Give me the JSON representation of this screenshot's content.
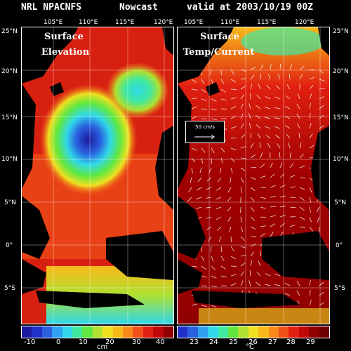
{
  "header": {
    "source": "NRL NPACNFS",
    "product": "Nowcast",
    "valid": "valid at 2003/10/19 00Z"
  },
  "longitude_ticks": [
    "105°E",
    "110°E",
    "115°E",
    "120°E"
  ],
  "latitude_ticks_left": [
    "25°N",
    "20°N",
    "15°N",
    "10°N",
    "5°N",
    "0°",
    "5°S"
  ],
  "latitude_ticks_right": [
    "25°N",
    "20°N",
    "15°N",
    "10°N",
    "5°N",
    "0°",
    "5°S"
  ],
  "left_panel": {
    "title_line1": "Surface",
    "title_line2": "Elevation",
    "colorbar_labels": [
      "-10",
      "0",
      "10",
      "20",
      "30",
      "40"
    ],
    "unit": "cm",
    "colors": [
      "#1a1aa0",
      "#2030c8",
      "#2a60e0",
      "#30a0f0",
      "#30d8e8",
      "#40e8a0",
      "#60e840",
      "#b0e030",
      "#f0e020",
      "#f8b818",
      "#f88818",
      "#f05018",
      "#e02010",
      "#c00808",
      "#900000"
    ]
  },
  "right_panel": {
    "title_line1": "Surface",
    "title_line2": "Temp/Current",
    "scale_label": "50 cm/s",
    "colorbar_labels": [
      "23",
      "24",
      "25",
      "26",
      "27",
      "28",
      "29"
    ],
    "unit": "°C",
    "colors": [
      "#2030c8",
      "#2a60e0",
      "#30a0f0",
      "#30d8e8",
      "#40e8a0",
      "#60e840",
      "#b0e030",
      "#f0e020",
      "#f8b818",
      "#f88818",
      "#f05018",
      "#e02010",
      "#c00808",
      "#900000",
      "#700000"
    ]
  }
}
